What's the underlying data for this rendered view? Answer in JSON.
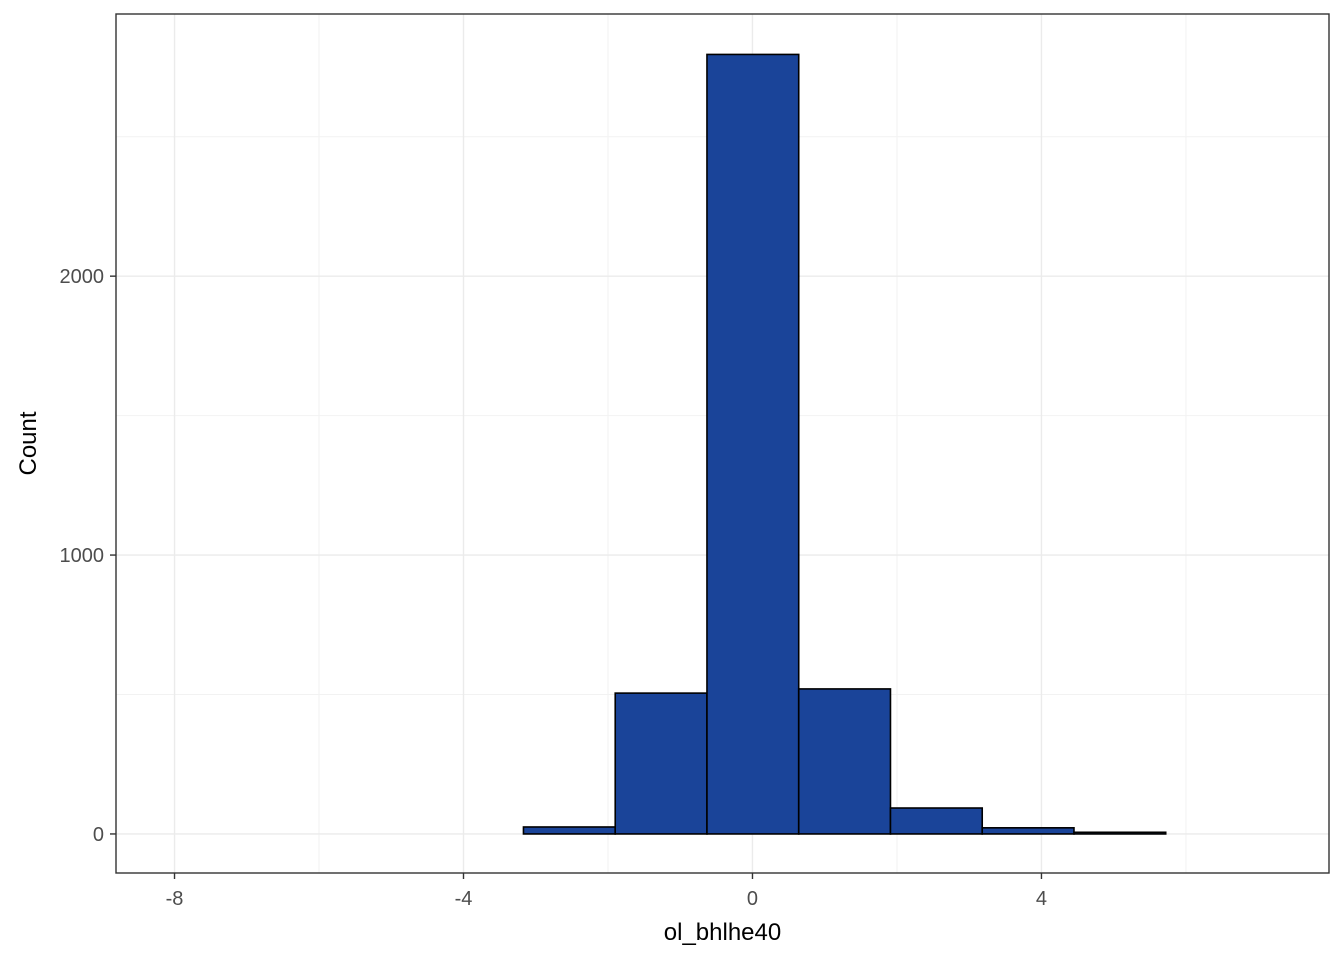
{
  "chart_data": {
    "type": "bar",
    "subtype": "histogram",
    "title": "",
    "xlabel": "ol_bhlhe40",
    "ylabel": "Count",
    "xlim": [
      -8.81,
      7.98
    ],
    "ylim": [
      -140,
      2940
    ],
    "x_ticks": [
      {
        "value": -8,
        "label": "-8"
      },
      {
        "value": -4,
        "label": "-4"
      },
      {
        "value": 0,
        "label": "0"
      },
      {
        "value": 4,
        "label": "4"
      }
    ],
    "y_ticks": [
      {
        "value": 0,
        "label": "0"
      },
      {
        "value": 1000,
        "label": "1000"
      },
      {
        "value": 2000,
        "label": "2000"
      }
    ],
    "grid": true,
    "bins": [
      {
        "x_start": -8.05,
        "x_end": -6.78,
        "count": 0
      },
      {
        "x_start": -6.78,
        "x_end": -5.51,
        "count": 0
      },
      {
        "x_start": -5.51,
        "x_end": -4.24,
        "count": 0
      },
      {
        "x_start": -4.24,
        "x_end": -2.97,
        "count": 0
      },
      {
        "x_start": -3.17,
        "x_end": -1.9,
        "count": 25
      },
      {
        "x_start": -1.9,
        "x_end": -0.63,
        "count": 505
      },
      {
        "x_start": -0.63,
        "x_end": 0.64,
        "count": 2795
      },
      {
        "x_start": 0.64,
        "x_end": 1.91,
        "count": 520
      },
      {
        "x_start": 1.91,
        "x_end": 3.18,
        "count": 93
      },
      {
        "x_start": 3.18,
        "x_end": 4.45,
        "count": 22
      },
      {
        "x_start": 4.45,
        "x_end": 5.72,
        "count": 6
      },
      {
        "x_start": 5.72,
        "x_end": 6.99,
        "count": 0
      }
    ],
    "colors": {
      "bar_fill": "#1a4499",
      "bar_stroke": "#000000",
      "panel_border": "#333333",
      "grid_major": "#ebebeb",
      "grid_minor": "#f2f2f2",
      "tick_label": "#4d4d4d",
      "axis_title": "#000000"
    }
  }
}
